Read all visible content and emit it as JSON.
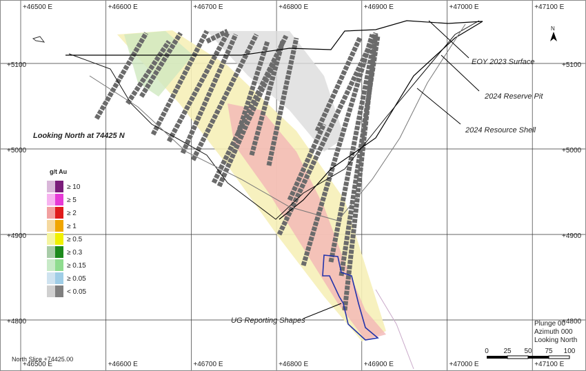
{
  "grid": {
    "eastings": [
      "+46500 E",
      "+46600 E",
      "+46700 E",
      "+46800 E",
      "+46900 E",
      "+47000 E",
      "+47100 E"
    ],
    "northings": [
      "+5100",
      "+5000",
      "+4900",
      "+4800"
    ]
  },
  "annotations": {
    "surface": "EOY 2023 Surface",
    "reserve_pit": "2024 Reserve Pit",
    "resource_shell": "2024 Resource Shell",
    "view": "Looking North at 74425 N",
    "ug": "UG Reporting Shapes"
  },
  "legend": {
    "title": "g/t Au",
    "items": [
      "≥ 10",
      "≥ 5",
      "≥ 2",
      "≥ 1",
      "≥ 0.5",
      "≥ 0.3",
      "≥ 0.15",
      "≥ 0.05",
      "< 0.05"
    ]
  },
  "info": [
    "Plunge 00",
    "Azimuth 000",
    "Looking North"
  ],
  "scale": [
    "0",
    "25",
    "50",
    "75",
    "100"
  ],
  "north": "N",
  "footer": "North Slice +74425.00"
}
